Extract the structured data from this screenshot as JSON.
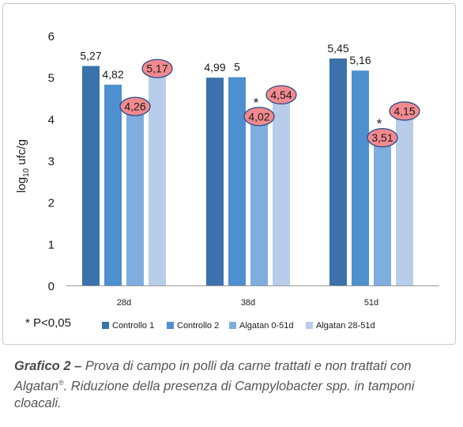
{
  "chart_data": {
    "type": "bar",
    "categories": [
      "28d",
      "38d",
      "51d"
    ],
    "series": [
      {
        "name": "Controllo 1",
        "color": "#3b72ab",
        "values": [
          5.27,
          4.99,
          5.45
        ]
      },
      {
        "name": "Controllo 2",
        "color": "#4d8fcf",
        "values": [
          4.82,
          5,
          5.16
        ]
      },
      {
        "name": "Algatan 0-51d",
        "color": "#7fadde",
        "values": [
          4.26,
          4.02,
          3.51
        ]
      },
      {
        "name": "Algatan 28-51d",
        "color": "#b8cde9",
        "values": [
          5.17,
          4.54,
          4.15
        ]
      }
    ],
    "value_labels": [
      [
        "5,27",
        "4,99",
        "5,45"
      ],
      [
        "4,82",
        "5",
        "5,16"
      ],
      [
        "4,26",
        "4,02",
        "3,51"
      ],
      [
        "5,17",
        "4,54",
        "4,15"
      ]
    ],
    "highlighted_series": [
      2,
      3
    ],
    "highlight_color": "#f28a8f",
    "significance_marker": "*",
    "significance_marks": [
      {
        "series": 2,
        "category": 1
      },
      {
        "series": 2,
        "category": 2
      }
    ],
    "ylabel_main": "log",
    "ylabel_sub": "10",
    "ylabel_rest": " ufc/g",
    "ylim": [
      0,
      6
    ],
    "yticks": [
      "0",
      "1",
      "2",
      "3",
      "4",
      "5",
      "6"
    ],
    "legend_position": "bottom",
    "footnote": "* P<0,05"
  },
  "caption": {
    "label": "Grafico 2 –",
    "text_part1": " Prova di campo in polli da carne trattati e non trattati con Algatan",
    "registered": "®",
    "text_part2": ". Riduzione della presenza di Campylobacter spp. in tamponi cloacali."
  }
}
